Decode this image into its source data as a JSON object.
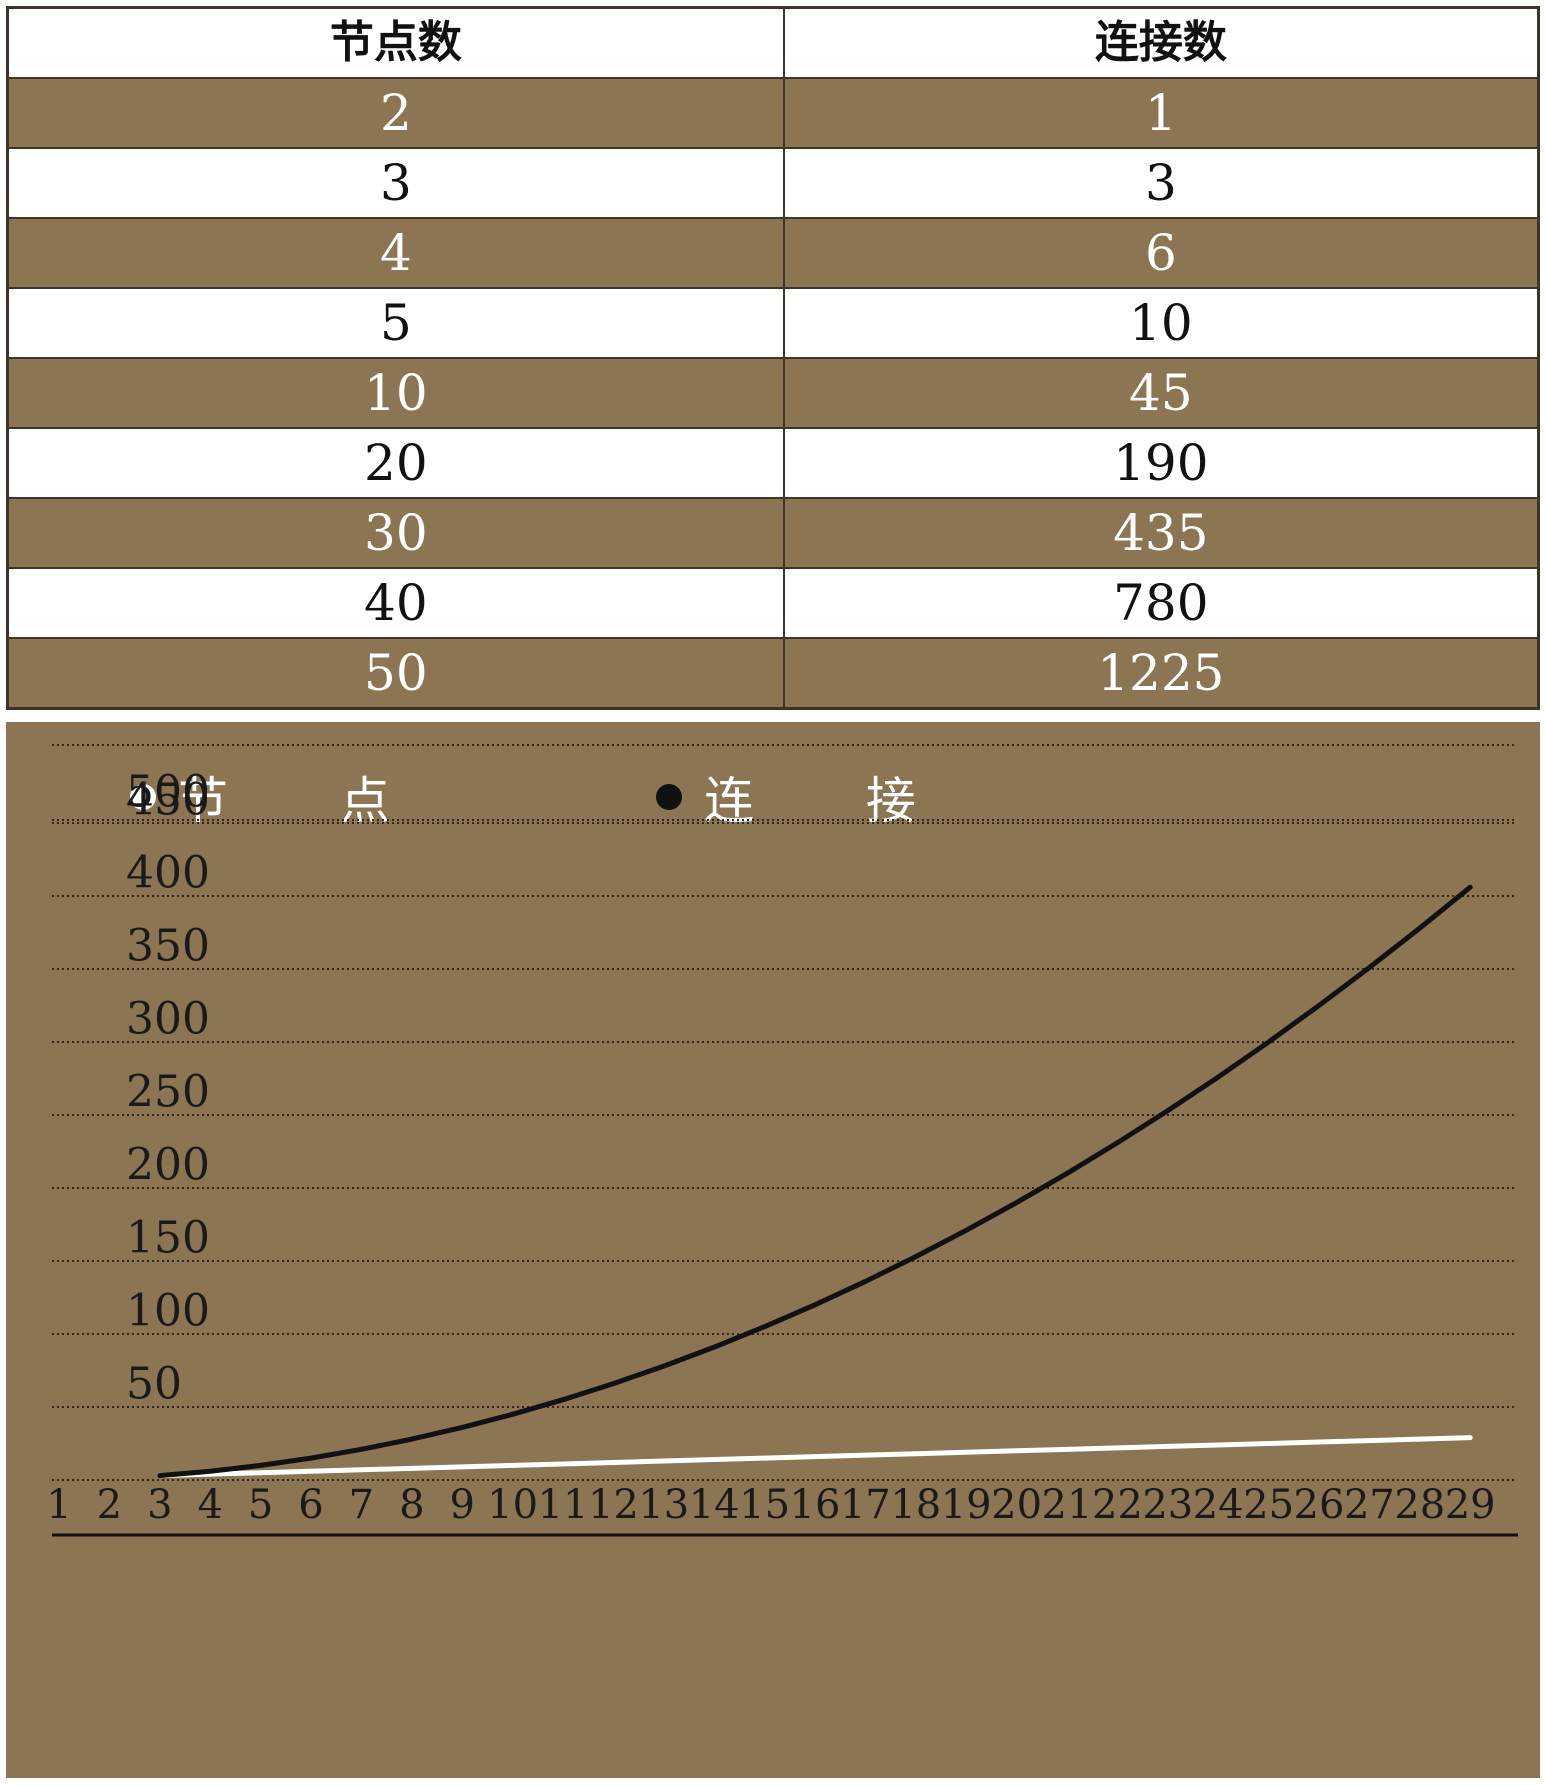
{
  "table": {
    "headers": [
      "节点数",
      "连接数"
    ],
    "rows": [
      [
        "2",
        "1"
      ],
      [
        "3",
        "3"
      ],
      [
        "4",
        "6"
      ],
      [
        "5",
        "10"
      ],
      [
        "10",
        "45"
      ],
      [
        "20",
        "190"
      ],
      [
        "30",
        "435"
      ],
      [
        "40",
        "780"
      ],
      [
        "50",
        "1225"
      ]
    ]
  },
  "chart_data": {
    "type": "line",
    "legend": [
      "节 点",
      "连 接"
    ],
    "legend_placement": "top",
    "x": [
      3,
      4,
      5,
      6,
      7,
      8,
      9,
      10,
      11,
      12,
      13,
      14,
      15,
      16,
      17,
      18,
      19,
      20,
      21,
      22,
      23,
      24,
      25,
      26,
      27,
      28,
      29
    ],
    "x_ticks": [
      "1",
      "2",
      "3",
      "4",
      "5",
      "6",
      "7",
      "8",
      "9",
      "10",
      "11",
      "12",
      "13",
      "14",
      "15",
      "16",
      "17",
      "18",
      "19",
      "20",
      "21",
      "22",
      "23",
      "24",
      "25",
      "26",
      "27",
      "28",
      "29"
    ],
    "y_ticks": [
      "50",
      "100",
      "150",
      "200",
      "250",
      "300",
      "350",
      "400",
      "450",
      "500"
    ],
    "ylim": [
      0,
      500
    ],
    "grid": true,
    "series": [
      {
        "name": "节 点",
        "color": "#ffffff",
        "values": [
          3,
          4,
          5,
          6,
          7,
          8,
          9,
          10,
          11,
          12,
          13,
          14,
          15,
          16,
          17,
          18,
          19,
          20,
          21,
          22,
          23,
          24,
          25,
          26,
          27,
          28,
          29
        ]
      },
      {
        "name": "连 接",
        "color": "#111111",
        "values": [
          3,
          6,
          10,
          15,
          21,
          28,
          36,
          45,
          55,
          66,
          78,
          91,
          105,
          120,
          136,
          153,
          171,
          190,
          210,
          231,
          253,
          276,
          300,
          325,
          351,
          378,
          406
        ]
      }
    ]
  },
  "colors": {
    "shade": "#8b7553",
    "node_line": "#ffffff",
    "link_line": "#111111"
  }
}
